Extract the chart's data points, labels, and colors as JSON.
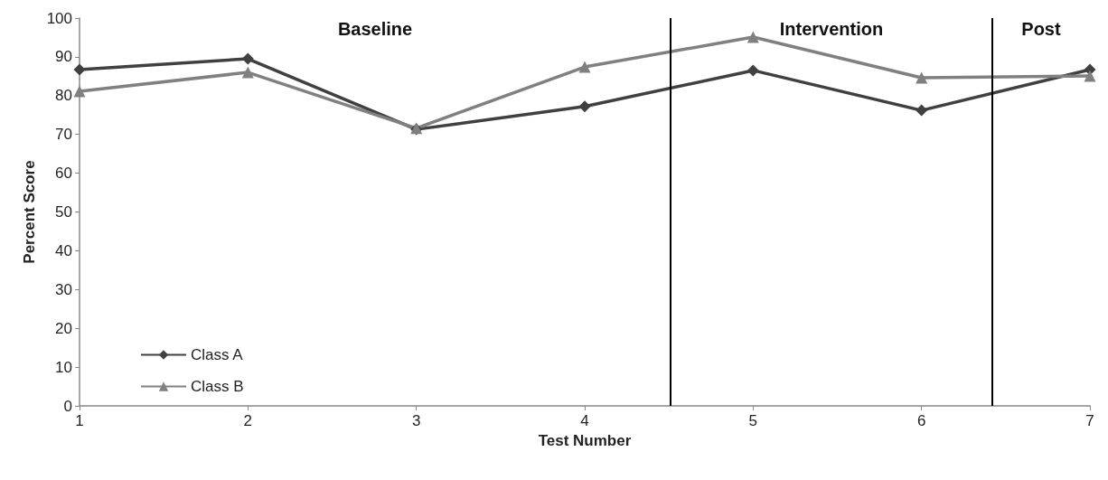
{
  "chart_data": {
    "type": "line",
    "xlabel": "Test Number",
    "ylabel": "Percent Score",
    "x": [
      1,
      2,
      3,
      4,
      5,
      6,
      7
    ],
    "series": [
      {
        "name": "Class A",
        "color": "#404040",
        "marker": "diamond",
        "values": [
          86.7,
          89.5,
          71.3,
          77.2,
          86.5,
          76.2,
          86.7
        ]
      },
      {
        "name": "Class B",
        "color": "#808080",
        "marker": "triangle",
        "values": [
          81.1,
          86,
          71.6,
          87.4,
          95.1,
          84.6,
          85.1
        ]
      }
    ],
    "xlim": [
      1,
      7
    ],
    "xticks": [
      1,
      2,
      3,
      4,
      5,
      6,
      7
    ],
    "ylim": [
      0,
      100
    ],
    "yticks": [
      0,
      10,
      20,
      30,
      40,
      50,
      60,
      70,
      80,
      90,
      100
    ],
    "grid": false,
    "legend": "bottom left",
    "line_style": "solid",
    "ref_lines": [
      {
        "axis": "x",
        "value": 4.51,
        "color": "#000000"
      },
      {
        "axis": "x",
        "value": 6.42,
        "color": "#000000"
      }
    ],
    "annotations": [
      "Baseline",
      "Intervention",
      "Post"
    ]
  }
}
